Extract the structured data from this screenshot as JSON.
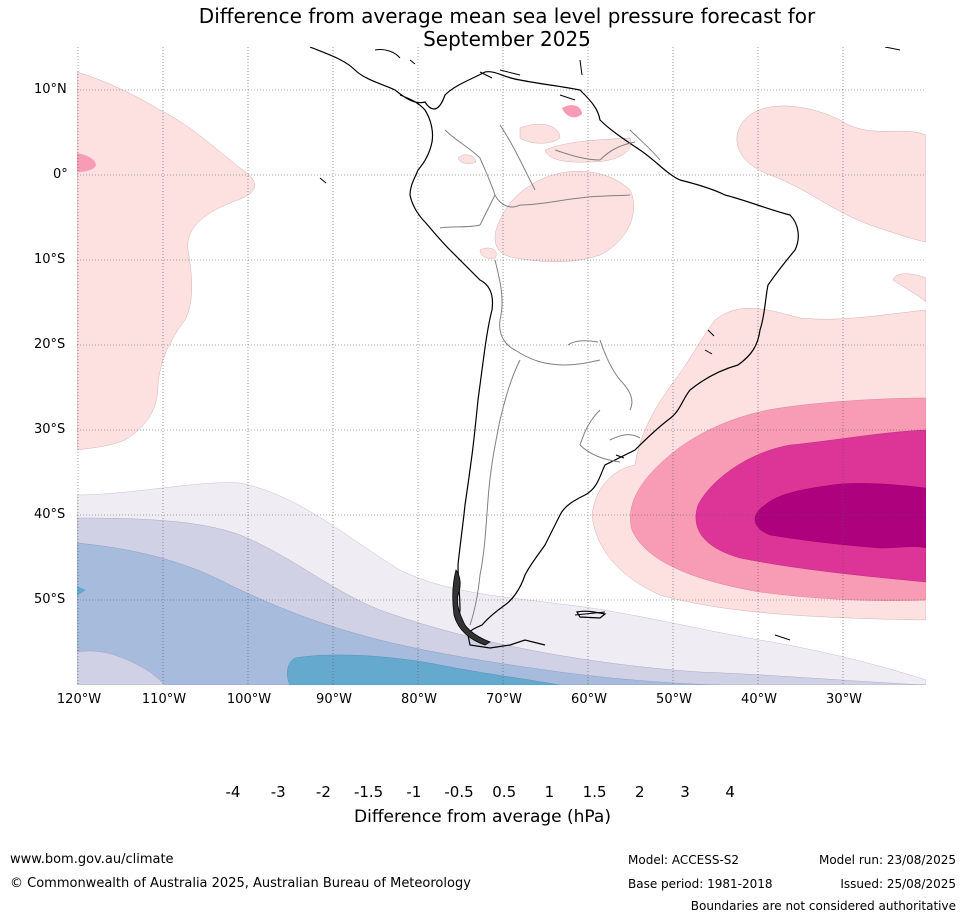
{
  "title_line1": "Difference from average mean sea level pressure forecast for",
  "title_line2": "September 2025",
  "lat_labels": [
    "10°N",
    "0°",
    "10°S",
    "20°S",
    "30°S",
    "40°S",
    "50°S"
  ],
  "lon_labels": [
    "120°W",
    "110°W",
    "100°W",
    "90°W",
    "80°W",
    "70°W",
    "60°W",
    "50°W",
    "40°W",
    "30°W"
  ],
  "colorbar": {
    "labels": [
      "-4",
      "-3",
      "-2",
      "-1.5",
      "-1",
      "-0.5",
      "0.5",
      "1",
      "1.5",
      "2",
      "3",
      "4"
    ],
    "colors": [
      "#1e9198",
      "#66a9cf",
      "#a7bcdc",
      "#d1d1e6",
      "#f0ecf3",
      "#ffffff",
      "#fde0e0",
      "#f89cb6",
      "#dd3497",
      "#ae017e",
      "#7a0177"
    ],
    "under_color": "#0b6b5e",
    "over_color": "#49006a",
    "title": "Difference from average (hPa)"
  },
  "colors": {
    "pink_light": "#fde0e0",
    "pink_mid": "#f89cb6",
    "magenta": "#dd3497",
    "deep_magenta": "#ae017e",
    "lavender": "#f0ecf3",
    "lavender_blue": "#d1d1e6",
    "pale_blue": "#a7bcdc",
    "blue": "#66a9cf",
    "coastline": "#000000",
    "borders": "#808080"
  },
  "footer": {
    "website": "www.bom.gov.au/climate",
    "copyright": "© Commonwealth of Australia 2025, Australian Bureau of Meteorology",
    "model": "Model: ACCESS-S2",
    "base_period": "Base period: 1981-2018",
    "model_run": "Model run: 23/08/2025",
    "issued": "Issued: 25/08/2025",
    "disclaimer": "Boundaries are not considered authoritative"
  }
}
